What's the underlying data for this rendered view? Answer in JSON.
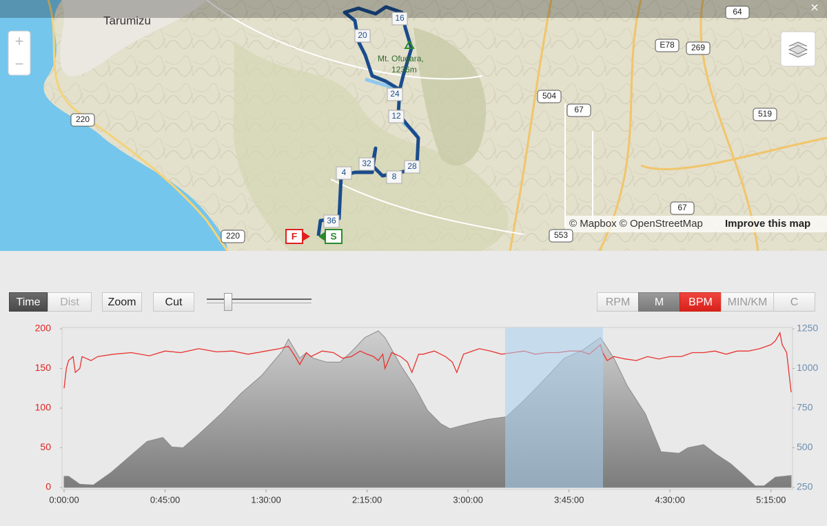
{
  "map": {
    "place": "Tarumizu",
    "peak": "Mt. Ofugara,",
    "peak_elevation": "1236m",
    "roads": [
      "220",
      "504",
      "67",
      "519",
      "E78",
      "269",
      "64",
      "553",
      "67",
      "220"
    ],
    "waypoints": [
      "16",
      "20",
      "24",
      "12",
      "28",
      "8",
      "32",
      "4",
      "36"
    ],
    "finish": "F",
    "start": "S",
    "attribution": "© Mapbox © OpenStreetMap",
    "improve_link": "Improve this map",
    "zoom_in": "+",
    "zoom_out": "−",
    "close": "×"
  },
  "controls": {
    "x_modes": [
      "Time",
      "Dist"
    ],
    "zoom": "Zoom",
    "cut": "Cut",
    "units": [
      "RPM",
      "M",
      "BPM",
      "MIN/KM",
      "C"
    ]
  },
  "chart_data": {
    "type": "line",
    "xlim": [
      0,
      324
    ],
    "xticks": [
      {
        "value": 0,
        "label": "0:00:00"
      },
      {
        "value": 45,
        "label": "0:45:00"
      },
      {
        "value": 90,
        "label": "1:30:00"
      },
      {
        "value": 135,
        "label": "2:15:00"
      },
      {
        "value": 180,
        "label": "3:00:00"
      },
      {
        "value": 225,
        "label": "3:45:00"
      },
      {
        "value": 270,
        "label": "4:30:00"
      },
      {
        "value": 315,
        "label": "5:15:00"
      }
    ],
    "ylim": [
      0,
      200
    ],
    "yticks": [
      0,
      50,
      100,
      150,
      200
    ],
    "y2lim": [
      250,
      1250
    ],
    "y2ticks": [
      250,
      500,
      750,
      1000,
      1250
    ],
    "ytick_color": "#e02020",
    "y2tick_color": "#6a8fb0",
    "series": [
      {
        "type": "area",
        "axis": "y2",
        "color": "#8a8a8a",
        "x": [
          0,
          2,
          7,
          13,
          21,
          30,
          37,
          44,
          48,
          53,
          60,
          70,
          79,
          88,
          97,
          100,
          105,
          108,
          111,
          117,
          123,
          128,
          134,
          140,
          143,
          150,
          156,
          162,
          168,
          172,
          180,
          189,
          197,
          205,
          214,
          223,
          231,
          239,
          245,
          251,
          259,
          266,
          274,
          278,
          285,
          291,
          297,
          303,
          308,
          312,
          317,
          324
        ],
        "values": [
          320,
          320,
          270,
          265,
          345,
          455,
          540,
          565,
          505,
          500,
          585,
          715,
          845,
          955,
          1105,
          1185,
          1065,
          1100,
          1065,
          1040,
          1040,
          1105,
          1195,
          1237,
          1195,
          1020,
          890,
          735,
          650,
          620,
          650,
          680,
          695,
          800,
          930,
          1065,
          1115,
          1195,
          1065,
          890,
          715,
          475,
          465,
          500,
          520,
          455,
          400,
          325,
          260,
          260,
          315,
          325
        ]
      },
      {
        "type": "line",
        "color": "#e8322e",
        "x": [
          0,
          1,
          2,
          4,
          5,
          7,
          8,
          12,
          15,
          22,
          30,
          38,
          45,
          52,
          60,
          68,
          75,
          82,
          90,
          96,
          100,
          103,
          105,
          108,
          110,
          115,
          120,
          124,
          128,
          132,
          135,
          138,
          140,
          142,
          143,
          146,
          150,
          153,
          155,
          158,
          160,
          165,
          170,
          173,
          175,
          178,
          180,
          185,
          190,
          195,
          200,
          205,
          210,
          215,
          220,
          225,
          230,
          234,
          237,
          239,
          240,
          242,
          245,
          250,
          255,
          260,
          265,
          270,
          275,
          280,
          285,
          290,
          295,
          300,
          305,
          310,
          315,
          317,
          319,
          320,
          322,
          324
        ],
        "values": [
          125,
          150,
          160,
          165,
          145,
          150,
          165,
          160,
          165,
          168,
          170,
          166,
          172,
          170,
          175,
          171,
          172,
          168,
          172,
          175,
          178,
          165,
          155,
          170,
          165,
          172,
          170,
          163,
          165,
          172,
          168,
          165,
          160,
          168,
          150,
          170,
          165,
          158,
          145,
          168,
          168,
          172,
          165,
          158,
          145,
          168,
          170,
          175,
          172,
          168,
          170,
          172,
          168,
          170,
          170,
          172,
          172,
          168,
          175,
          180,
          170,
          160,
          165,
          162,
          160,
          165,
          162,
          165,
          165,
          170,
          170,
          172,
          168,
          172,
          172,
          175,
          180,
          185,
          195,
          180,
          170,
          120
        ]
      }
    ]
  }
}
